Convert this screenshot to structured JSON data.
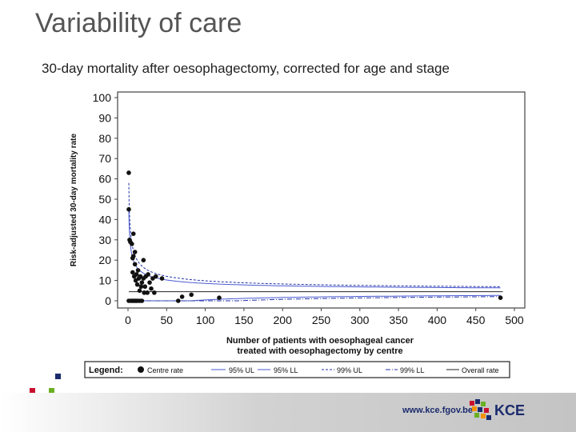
{
  "slide": {
    "title": "Variability of care",
    "subtitle": "30-day mortality after oesophagectomy, corrected for age and stage"
  },
  "footer": {
    "url": "www.kce.fgov.be",
    "logo_text": "KCE"
  },
  "colors": {
    "title": "#555555",
    "accent_red": "#c8102e",
    "accent_blue": "#1a2a6c",
    "accent_green": "#6ab023",
    "accent_orange": "#f39200",
    "limit_line": "#3344bb"
  },
  "chart_data": {
    "type": "scatter",
    "title": "",
    "xlabel": "Number of patients with oesophageal cancer treated with oesophagectomy by centre",
    "xlabel_lines": [
      "Number of patients with oesophageal cancer",
      "treated with oesophagectomy by centre"
    ],
    "ylabel": "Risk-adjusted 30-day mortality rate",
    "xlim": [
      0,
      500
    ],
    "ylim": [
      0,
      100
    ],
    "x_ticks": [
      0,
      50,
      100,
      150,
      200,
      250,
      300,
      350,
      400,
      450,
      500
    ],
    "y_ticks": [
      0,
      10,
      20,
      30,
      40,
      50,
      60,
      70,
      80,
      90,
      100
    ],
    "overall_rate": 4.5,
    "centre_rates": [
      {
        "x": 1,
        "y": 63
      },
      {
        "x": 1,
        "y": 45
      },
      {
        "x": 1,
        "y": 0
      },
      {
        "x": 2,
        "y": 30
      },
      {
        "x": 3,
        "y": 29
      },
      {
        "x": 4,
        "y": 0
      },
      {
        "x": 5,
        "y": 28
      },
      {
        "x": 6,
        "y": 14
      },
      {
        "x": 6,
        "y": 21
      },
      {
        "x": 6,
        "y": 0
      },
      {
        "x": 7,
        "y": 33
      },
      {
        "x": 7,
        "y": 22
      },
      {
        "x": 8,
        "y": 12
      },
      {
        "x": 8,
        "y": 0
      },
      {
        "x": 9,
        "y": 24
      },
      {
        "x": 9,
        "y": 18
      },
      {
        "x": 10,
        "y": 10
      },
      {
        "x": 10,
        "y": 0
      },
      {
        "x": 11,
        "y": 13
      },
      {
        "x": 12,
        "y": 8
      },
      {
        "x": 12,
        "y": 0
      },
      {
        "x": 13,
        "y": 15
      },
      {
        "x": 14,
        "y": 11
      },
      {
        "x": 15,
        "y": 5
      },
      {
        "x": 15,
        "y": 0
      },
      {
        "x": 16,
        "y": 12
      },
      {
        "x": 17,
        "y": 7
      },
      {
        "x": 18,
        "y": 9
      },
      {
        "x": 18,
        "y": 0
      },
      {
        "x": 20,
        "y": 20
      },
      {
        "x": 20,
        "y": 11
      },
      {
        "x": 21,
        "y": 4
      },
      {
        "x": 22,
        "y": 7
      },
      {
        "x": 23,
        "y": 12
      },
      {
        "x": 25,
        "y": 4
      },
      {
        "x": 26,
        "y": 13
      },
      {
        "x": 28,
        "y": 9
      },
      {
        "x": 30,
        "y": 6
      },
      {
        "x": 32,
        "y": 11
      },
      {
        "x": 34,
        "y": 4
      },
      {
        "x": 36,
        "y": 12
      },
      {
        "x": 44,
        "y": 11
      },
      {
        "x": 65,
        "y": 0
      },
      {
        "x": 70,
        "y": 2
      },
      {
        "x": 82,
        "y": 3
      },
      {
        "x": 118,
        "y": 1.5
      },
      {
        "x": 482,
        "y": 1.5
      }
    ],
    "legend": {
      "title": "Legend:",
      "items": [
        "Centre rate",
        "95% UL",
        "95% LL",
        "99% UL",
        "99% LL",
        "Overall rate"
      ],
      "placement": "bottom"
    }
  }
}
